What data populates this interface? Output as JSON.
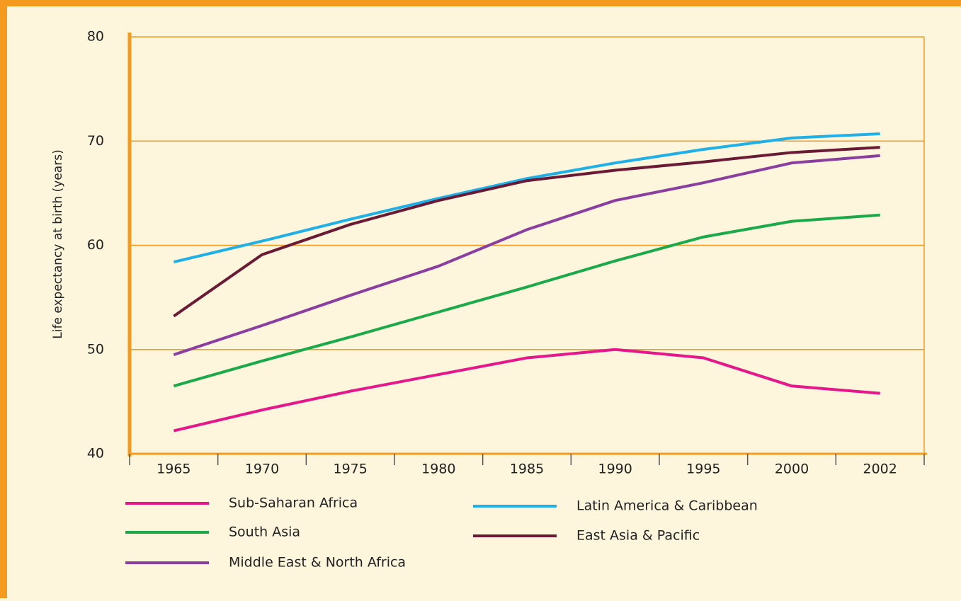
{
  "chart_data": {
    "type": "line",
    "y_label": "Life expectancy at birth (years)",
    "categories": [
      "1965",
      "1970",
      "1975",
      "1980",
      "1985",
      "1990",
      "1995",
      "2000",
      "2002"
    ],
    "series": [
      {
        "name": "Sub-Saharan Africa",
        "color": "#e5178a",
        "values": [
          42.2,
          44.2,
          46,
          47.6,
          49.2,
          50,
          49.2,
          46.5,
          45.8
        ]
      },
      {
        "name": "South Asia",
        "color": "#1aaa4a",
        "values": [
          46.5,
          48.9,
          51.2,
          53.6,
          56,
          58.5,
          60.8,
          62.3,
          62.9
        ]
      },
      {
        "name": "Middle East & North Africa",
        "color": "#8a3fa0",
        "values": [
          49.5,
          52.3,
          55.2,
          58,
          61.5,
          64.3,
          66,
          67.9,
          68.6
        ]
      },
      {
        "name": "Latin America & Caribbean",
        "color": "#1fb0e8",
        "values": [
          58.4,
          60.4,
          62.5,
          64.5,
          66.4,
          67.9,
          69.2,
          70.3,
          70.7
        ]
      },
      {
        "name": "East Asia & Pacific",
        "color": "#6b1a35",
        "values": [
          53.2,
          59.1,
          62,
          64.3,
          66.2,
          67.2,
          68,
          68.9,
          69.4
        ]
      }
    ],
    "ylim": [
      40,
      80
    ],
    "yticks": [
      40,
      50,
      60,
      70,
      80
    ],
    "grid": true
  }
}
